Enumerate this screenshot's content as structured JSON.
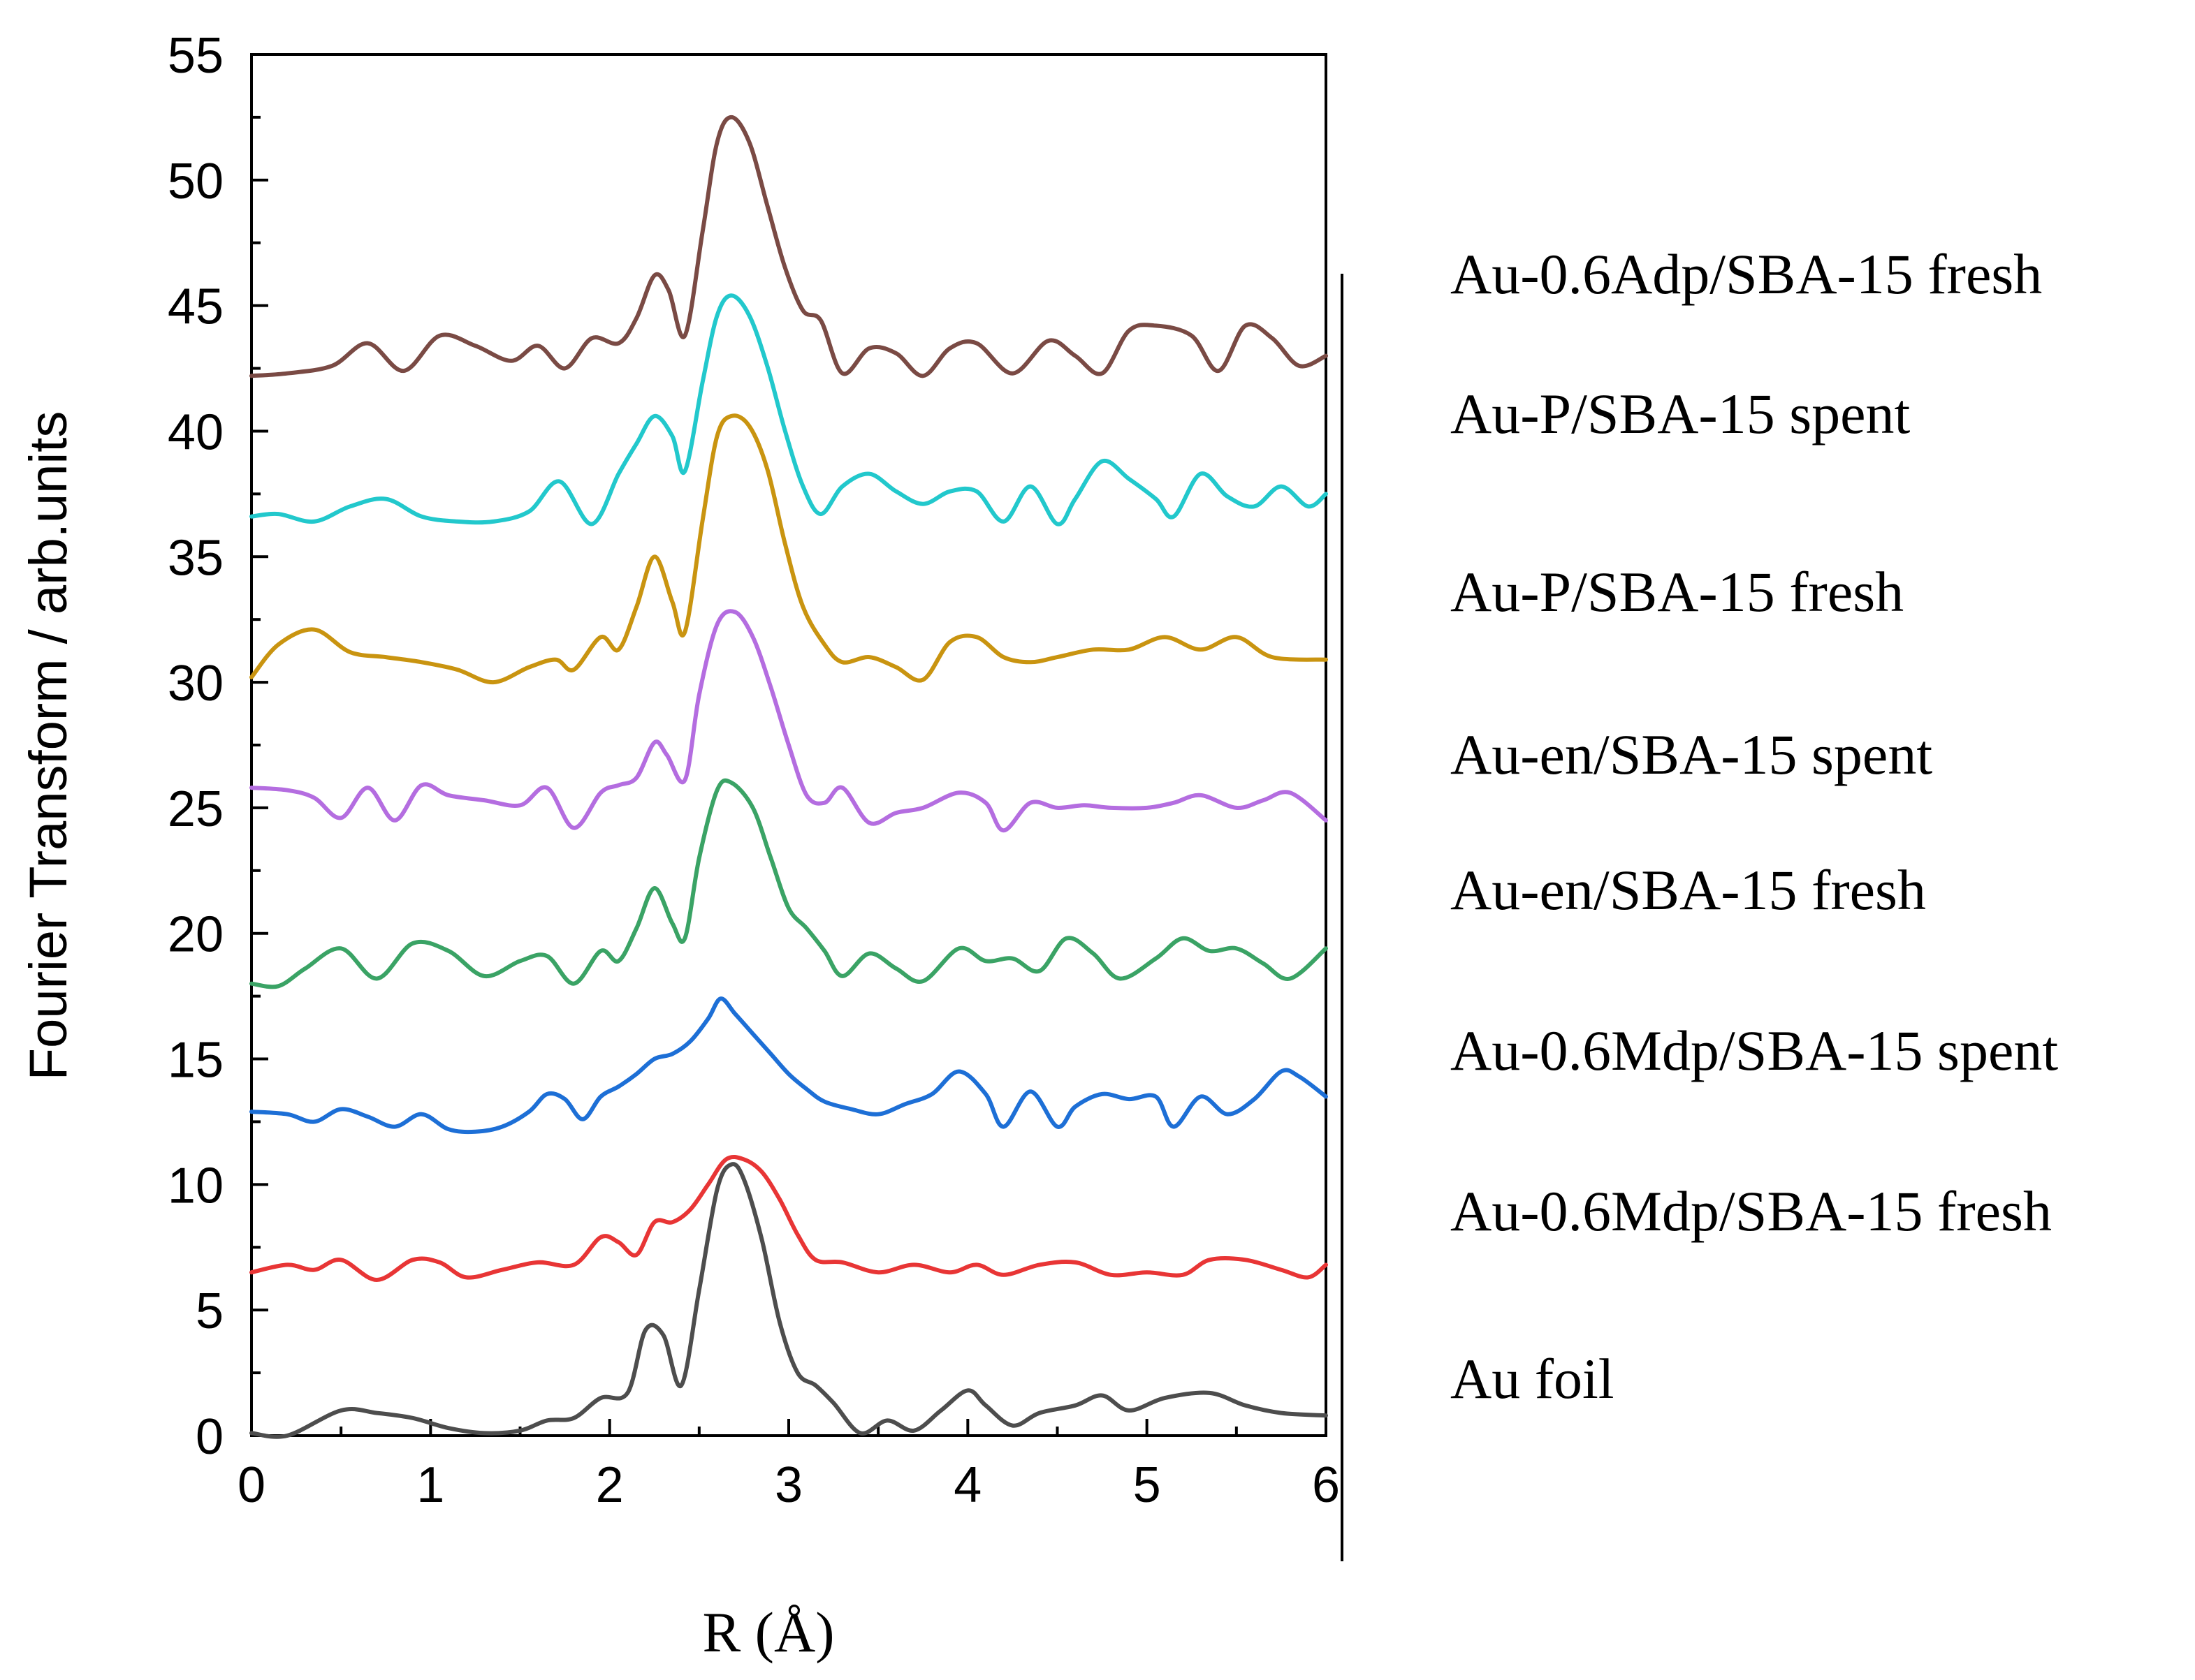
{
  "chart_data": {
    "type": "line",
    "xlabel": "R (Å)",
    "ylabel": "Fourier Transform / arb.units",
    "xlim": [
      0,
      6
    ],
    "ylim": [
      0,
      55
    ],
    "x_ticks": [
      "0",
      "1",
      "2",
      "3",
      "4",
      "5",
      "6"
    ],
    "y_ticks": [
      "0",
      "5",
      "10",
      "15",
      "20",
      "25",
      "30",
      "35",
      "40",
      "45",
      "50",
      "55"
    ],
    "series": [
      {
        "name": "Au foil",
        "color": "#4d4d4d",
        "x": [
          0,
          0.2,
          0.5,
          0.7,
          0.9,
          1.1,
          1.3,
          1.5,
          1.65,
          1.8,
          1.95,
          2.1,
          2.2,
          2.3,
          2.4,
          2.5,
          2.6,
          2.68,
          2.75,
          2.85,
          2.95,
          3.05,
          3.15,
          3.25,
          3.4,
          3.55,
          3.7,
          3.85,
          4.0,
          4.1,
          4.25,
          4.4,
          4.6,
          4.75,
          4.9,
          5.1,
          5.35,
          5.55,
          5.75,
          6.0
        ],
        "y": [
          0.1,
          0.0,
          1.0,
          0.9,
          0.7,
          0.3,
          0.1,
          0.2,
          0.6,
          0.7,
          1.5,
          1.7,
          4.2,
          4.0,
          2.0,
          5.8,
          9.8,
          10.8,
          10.2,
          7.8,
          4.5,
          2.5,
          2.0,
          1.3,
          0.1,
          0.6,
          0.2,
          1.0,
          1.8,
          1.2,
          0.4,
          0.9,
          1.2,
          1.6,
          1.0,
          1.5,
          1.7,
          1.2,
          0.9,
          0.8
        ]
      },
      {
        "name": "Au-0.6Mdp/SBA-15 fresh",
        "color": "#e83535",
        "x": [
          0,
          0.2,
          0.35,
          0.5,
          0.7,
          0.9,
          1.05,
          1.2,
          1.4,
          1.6,
          1.8,
          1.95,
          2.05,
          2.15,
          2.25,
          2.35,
          2.45,
          2.55,
          2.65,
          2.75,
          2.85,
          2.95,
          3.05,
          3.15,
          3.3,
          3.5,
          3.7,
          3.9,
          4.05,
          4.2,
          4.4,
          4.6,
          4.8,
          5.0,
          5.2,
          5.35,
          5.55,
          5.75,
          5.9,
          6.0
        ],
        "y": [
          6.5,
          6.8,
          6.6,
          7.0,
          6.2,
          7.0,
          6.9,
          6.3,
          6.6,
          6.9,
          6.8,
          7.9,
          7.7,
          7.2,
          8.5,
          8.5,
          9.0,
          10.0,
          11.0,
          11.0,
          10.5,
          9.4,
          8.0,
          7.0,
          6.9,
          6.5,
          6.8,
          6.5,
          6.8,
          6.4,
          6.8,
          6.9,
          6.4,
          6.5,
          6.4,
          7.0,
          7.0,
          6.6,
          6.3,
          6.8
        ]
      },
      {
        "name": "Au-0.6Mdp/SBA-15 spent",
        "color": "#1d6fd6",
        "x": [
          0,
          0.2,
          0.35,
          0.5,
          0.65,
          0.8,
          0.95,
          1.1,
          1.25,
          1.4,
          1.55,
          1.65,
          1.75,
          1.85,
          1.95,
          2.05,
          2.15,
          2.25,
          2.35,
          2.45,
          2.55,
          2.62,
          2.7,
          2.8,
          2.9,
          3.0,
          3.1,
          3.2,
          3.35,
          3.5,
          3.65,
          3.8,
          3.95,
          4.1,
          4.2,
          4.35,
          4.5,
          4.6,
          4.75,
          4.9,
          5.05,
          5.15,
          5.3,
          5.45,
          5.6,
          5.75,
          5.85,
          6.0
        ],
        "y": [
          12.9,
          12.8,
          12.5,
          13.0,
          12.7,
          12.3,
          12.8,
          12.2,
          12.1,
          12.3,
          12.9,
          13.6,
          13.4,
          12.6,
          13.5,
          13.9,
          14.4,
          15.0,
          15.2,
          15.7,
          16.6,
          17.4,
          16.8,
          16.0,
          15.2,
          14.4,
          13.8,
          13.3,
          13.0,
          12.8,
          13.2,
          13.6,
          14.5,
          13.6,
          12.3,
          13.7,
          12.3,
          13.1,
          13.6,
          13.4,
          13.5,
          12.3,
          13.5,
          12.8,
          13.4,
          14.5,
          14.3,
          13.5
        ]
      },
      {
        "name": "Au-en/SBA-15 fresh",
        "color": "#3aa365",
        "x": [
          0,
          0.15,
          0.3,
          0.5,
          0.7,
          0.9,
          1.1,
          1.3,
          1.5,
          1.65,
          1.8,
          1.95,
          2.05,
          2.15,
          2.25,
          2.35,
          2.42,
          2.5,
          2.6,
          2.68,
          2.8,
          2.9,
          3.0,
          3.1,
          3.2,
          3.3,
          3.45,
          3.6,
          3.75,
          3.95,
          4.1,
          4.25,
          4.4,
          4.55,
          4.7,
          4.85,
          5.05,
          5.2,
          5.35,
          5.5,
          5.65,
          5.8,
          6.0
        ],
        "y": [
          18.0,
          17.9,
          18.6,
          19.4,
          18.2,
          19.6,
          19.3,
          18.3,
          18.9,
          19.1,
          18.0,
          19.3,
          18.9,
          20.2,
          21.8,
          20.4,
          19.8,
          23.0,
          25.7,
          26.0,
          25.0,
          23.0,
          21.0,
          20.2,
          19.3,
          18.3,
          19.2,
          18.6,
          18.1,
          19.4,
          18.9,
          19.0,
          18.5,
          19.8,
          19.2,
          18.2,
          19.0,
          19.8,
          19.3,
          19.4,
          18.8,
          18.2,
          19.4
        ]
      },
      {
        "name": "Au-en/SBA-15 spent",
        "color": "#b46de0",
        "x": [
          0,
          0.2,
          0.35,
          0.5,
          0.65,
          0.8,
          0.95,
          1.1,
          1.3,
          1.5,
          1.65,
          1.8,
          1.95,
          2.05,
          2.15,
          2.25,
          2.32,
          2.42,
          2.5,
          2.6,
          2.7,
          2.8,
          2.9,
          3.0,
          3.1,
          3.2,
          3.3,
          3.45,
          3.6,
          3.75,
          3.95,
          4.1,
          4.2,
          4.35,
          4.5,
          4.65,
          4.8,
          5.0,
          5.15,
          5.3,
          5.5,
          5.65,
          5.8,
          6.0
        ],
        "y": [
          25.8,
          25.7,
          25.4,
          24.6,
          25.8,
          24.5,
          25.9,
          25.5,
          25.3,
          25.1,
          25.8,
          24.2,
          25.6,
          25.9,
          26.2,
          27.6,
          27.1,
          26.1,
          29.5,
          32.3,
          32.8,
          31.8,
          29.8,
          27.5,
          25.5,
          25.2,
          25.8,
          24.4,
          24.8,
          25.0,
          25.6,
          25.2,
          24.1,
          25.2,
          25.0,
          25.1,
          25.0,
          25.0,
          25.2,
          25.5,
          25.0,
          25.3,
          25.6,
          24.5
        ]
      },
      {
        "name": "Au-P/SBA-15 fresh",
        "color": "#c99410",
        "x": [
          0,
          0.15,
          0.35,
          0.55,
          0.75,
          0.95,
          1.15,
          1.35,
          1.55,
          1.7,
          1.8,
          1.95,
          2.05,
          2.15,
          2.25,
          2.35,
          2.42,
          2.52,
          2.6,
          2.68,
          2.78,
          2.88,
          2.98,
          3.08,
          3.2,
          3.3,
          3.45,
          3.6,
          3.75,
          3.9,
          4.05,
          4.2,
          4.35,
          4.5,
          4.7,
          4.9,
          5.1,
          5.3,
          5.5,
          5.7,
          6.0
        ],
        "y": [
          30.2,
          31.5,
          32.1,
          31.2,
          31.0,
          30.8,
          30.5,
          30.0,
          30.6,
          30.9,
          30.5,
          31.8,
          31.3,
          33.0,
          35.0,
          33.2,
          32.0,
          36.5,
          39.8,
          40.6,
          40.2,
          38.5,
          35.5,
          33.0,
          31.5,
          30.8,
          31.0,
          30.6,
          30.1,
          31.6,
          31.8,
          31.0,
          30.8,
          31.0,
          31.3,
          31.3,
          31.8,
          31.3,
          31.8,
          31.0,
          30.9
        ]
      },
      {
        "name": "Au-P/SBA-15 spent",
        "color": "#22c8cc",
        "x": [
          0,
          0.15,
          0.35,
          0.55,
          0.75,
          0.95,
          1.15,
          1.35,
          1.55,
          1.72,
          1.9,
          2.05,
          2.15,
          2.25,
          2.35,
          2.42,
          2.52,
          2.6,
          2.68,
          2.78,
          2.88,
          2.98,
          3.08,
          3.18,
          3.3,
          3.45,
          3.6,
          3.75,
          3.9,
          4.05,
          4.2,
          4.35,
          4.5,
          4.6,
          4.75,
          4.9,
          5.05,
          5.15,
          5.3,
          5.45,
          5.6,
          5.75,
          5.9,
          6.0
        ],
        "y": [
          36.6,
          36.7,
          36.4,
          37.0,
          37.3,
          36.6,
          36.4,
          36.4,
          36.8,
          38.0,
          36.3,
          38.3,
          39.5,
          40.6,
          39.8,
          38.4,
          42.0,
          44.6,
          45.4,
          44.6,
          42.6,
          40.0,
          37.8,
          36.7,
          37.8,
          38.3,
          37.6,
          37.1,
          37.6,
          37.6,
          36.4,
          37.8,
          36.3,
          37.3,
          38.8,
          38.1,
          37.3,
          36.6,
          38.3,
          37.4,
          37.0,
          37.8,
          37.0,
          37.5
        ]
      },
      {
        "name": "Au-0.6Adp/SBA-15 fresh",
        "color": "#7a4a44",
        "x": [
          0,
          0.2,
          0.45,
          0.65,
          0.85,
          1.05,
          1.25,
          1.45,
          1.6,
          1.75,
          1.9,
          2.05,
          2.15,
          2.25,
          2.33,
          2.42,
          2.52,
          2.6,
          2.68,
          2.78,
          2.88,
          2.98,
          3.08,
          3.18,
          3.3,
          3.45,
          3.6,
          3.75,
          3.9,
          4.05,
          4.25,
          4.45,
          4.6,
          4.75,
          4.9,
          5.05,
          5.25,
          5.4,
          5.55,
          5.7,
          5.85,
          6.0
        ],
        "y": [
          42.2,
          42.3,
          42.6,
          43.5,
          42.4,
          43.8,
          43.4,
          42.8,
          43.4,
          42.5,
          43.7,
          43.5,
          44.5,
          46.2,
          45.6,
          43.8,
          48.0,
          51.5,
          52.5,
          51.5,
          49.0,
          46.5,
          44.8,
          44.4,
          42.3,
          43.3,
          43.1,
          42.2,
          43.3,
          43.5,
          42.3,
          43.6,
          43.0,
          42.3,
          44.0,
          44.2,
          43.8,
          42.4,
          44.2,
          43.7,
          42.6,
          43.0
        ]
      }
    ]
  }
}
